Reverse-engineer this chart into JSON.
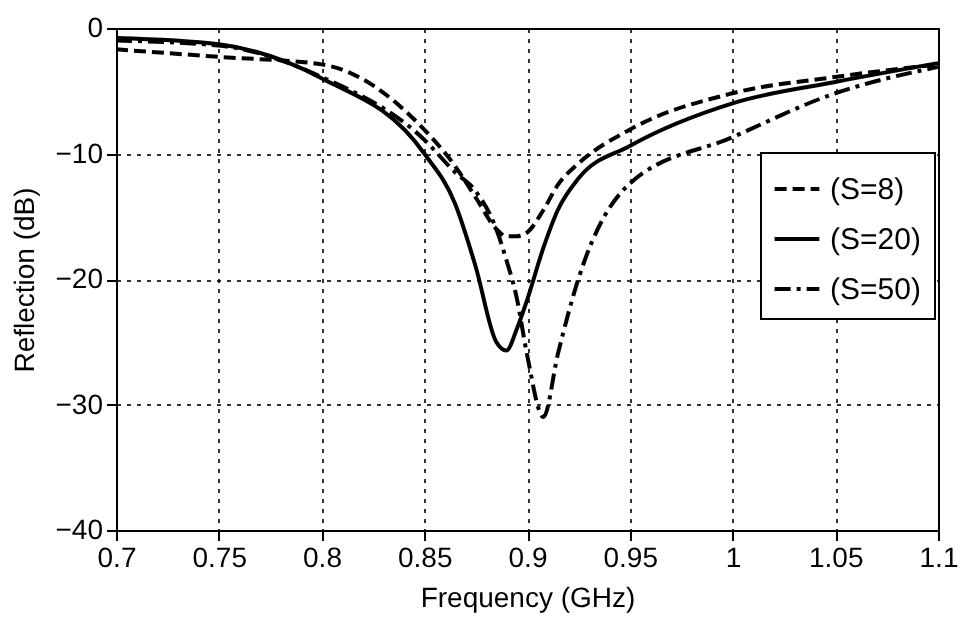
{
  "chart_data": {
    "type": "line",
    "xlabel": "Frequency (GHz)",
    "ylabel": "Reflection (dB)",
    "xlim": [
      0.7,
      1.1
    ],
    "xticks": [
      0.7,
      0.75,
      0.8,
      0.85,
      0.9,
      0.95,
      1,
      1.05,
      1.1
    ],
    "ylim": [
      -40,
      0
    ],
    "yticks": [
      -40,
      -30,
      -20,
      -10,
      0
    ],
    "grid": true,
    "legend": "right",
    "marker": "none",
    "x": [
      0.7,
      0.75,
      0.8,
      0.85,
      0.865,
      0.875,
      0.885,
      0.89,
      0.895,
      0.9,
      0.908,
      0.915,
      0.925,
      0.95,
      1,
      1.05,
      1.1
    ],
    "series": [
      {
        "name": "(S=8)",
        "color": "#000000",
        "line_style": "dashed",
        "values": [
          -1.7,
          -2.3,
          -2.9,
          -8.1,
          -11,
          -13.5,
          -16,
          -16.6,
          -16.6,
          -16.3,
          -14.5,
          -12.5,
          -10.8,
          -8.1,
          -5.2,
          -3.9,
          -2.9
        ]
      },
      {
        "name": "(S=20)",
        "color": "#000000",
        "line_style": "solid",
        "values": [
          -0.8,
          -1.3,
          -4,
          -10,
          -14,
          -19,
          -25,
          -25.7,
          -24,
          -21.7,
          -17.5,
          -14.5,
          -12,
          -9.4,
          -6,
          -4.3,
          -2.8
        ]
      },
      {
        "name": "(S=50)",
        "color": "#000000",
        "line_style": "dashdot",
        "values": [
          -1,
          -1.4,
          -3.9,
          -8.9,
          -11.5,
          -13,
          -16,
          -18.5,
          -21.5,
          -26,
          -31,
          -26,
          -20,
          -12.4,
          -8.7,
          -5.2,
          -3.1
        ]
      }
    ]
  }
}
